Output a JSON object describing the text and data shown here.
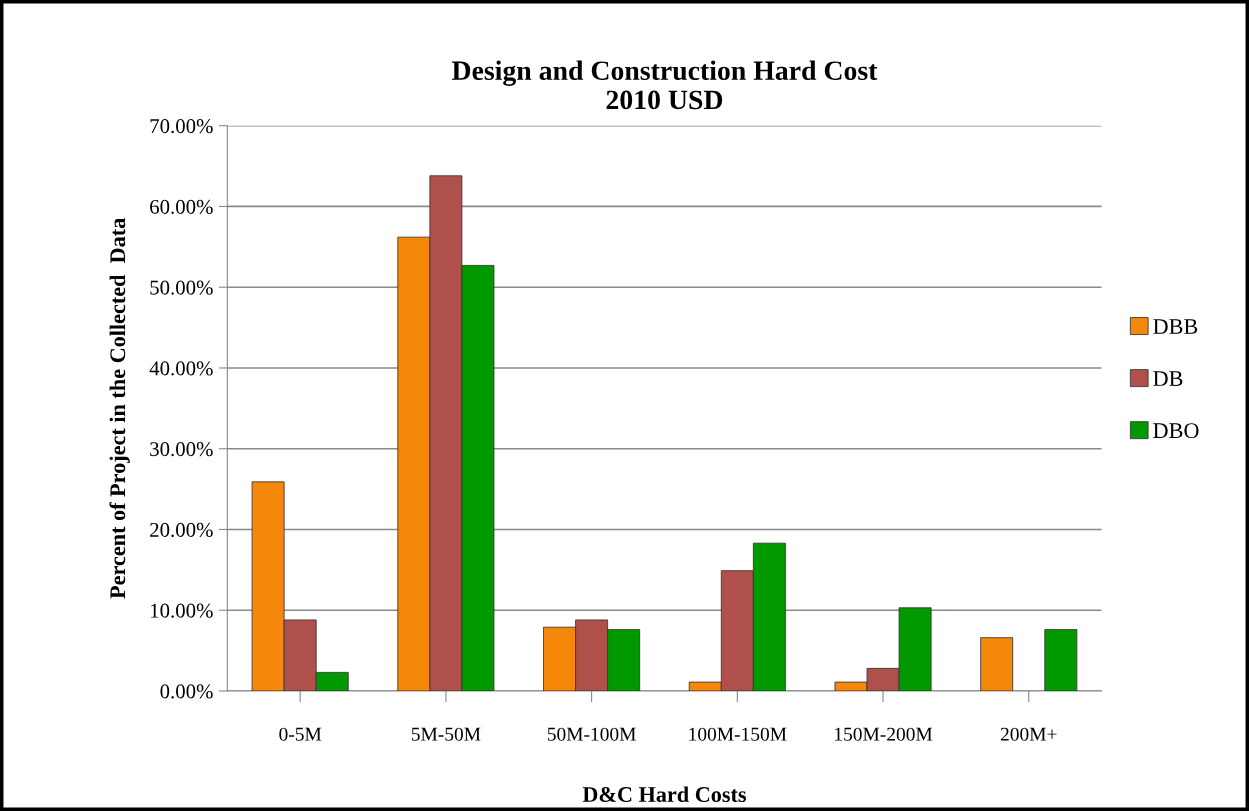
{
  "chart_data": {
    "type": "bar",
    "title": "Design and Construction Hard Cost\n2010 USD",
    "xlabel": "D&C Hard Costs",
    "ylabel": "Percent of Project in the Collected  Data",
    "categories": [
      "0-5M",
      "5M-50M",
      "50M-100M",
      "100M-150M",
      "150M-200M",
      "200M+"
    ],
    "series": [
      {
        "name": "DBB",
        "color": "#f5870a",
        "values": [
          25.9,
          56.2,
          7.9,
          1.1,
          1.1,
          6.6
        ]
      },
      {
        "name": "DB",
        "color": "#b0504a",
        "values": [
          8.8,
          63.8,
          8.8,
          14.9,
          2.8,
          null
        ]
      },
      {
        "name": "DBO",
        "color": "#009900",
        "values": [
          2.3,
          52.7,
          7.6,
          18.3,
          10.3,
          7.6
        ]
      }
    ],
    "ylim": [
      0,
      70
    ],
    "yticks": [
      {
        "value": 0,
        "label": "0.00%"
      },
      {
        "value": 10,
        "label": "10.00%"
      },
      {
        "value": 20,
        "label": "20.00%"
      },
      {
        "value": 30,
        "label": "30.00%"
      },
      {
        "value": 40,
        "label": "40.00%"
      },
      {
        "value": 50,
        "label": "50.00%"
      },
      {
        "value": 60,
        "label": "60.00%"
      },
      {
        "value": 70,
        "label": "70.00%"
      }
    ],
    "grid": "y",
    "legend": "right"
  }
}
